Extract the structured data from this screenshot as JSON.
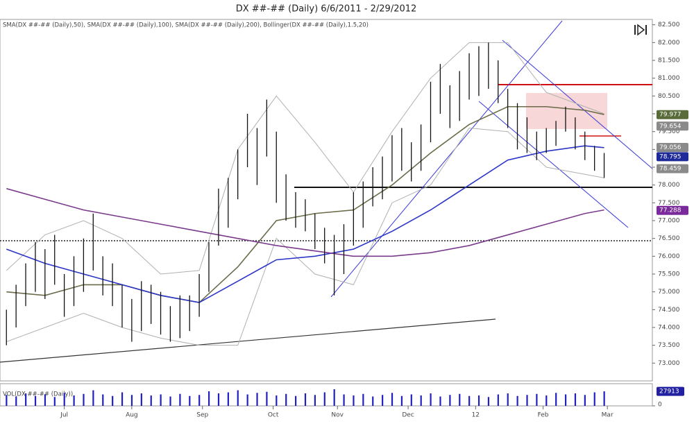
{
  "chart_data": {
    "type": "ohlc",
    "title": "DX ##-## (Daily)  6/6/2011 - 2/29/2012",
    "legend_text": "SMA(DX ##-## (Daily),50), SMA(DX ##-## (Daily),100), SMA(DX ##-## (Daily),200), Bollinger(DX ##-## (Daily),1.5,20)",
    "volume_label": "VOL(DX ##-## (Daily))",
    "xlim": [
      -2,
      201
    ],
    "xticks": [
      {
        "value": 18,
        "label": "Jul"
      },
      {
        "value": 39,
        "label": "Aug"
      },
      {
        "value": 61,
        "label": "Sep"
      },
      {
        "value": 83,
        "label": "Oct"
      },
      {
        "value": 103,
        "label": "Nov"
      },
      {
        "value": 125,
        "label": "Dec"
      },
      {
        "value": 146,
        "label": "12"
      },
      {
        "value": 167,
        "label": "Feb"
      },
      {
        "value": 187,
        "label": "Mar"
      }
    ],
    "ylim": [
      72.5,
      82.65
    ],
    "yticks": [
      {
        "value": 73.0,
        "label": "73.000"
      },
      {
        "value": 73.5,
        "label": "73.500"
      },
      {
        "value": 74.0,
        "label": "74.000"
      },
      {
        "value": 74.5,
        "label": "74.500"
      },
      {
        "value": 75.0,
        "label": "75.000"
      },
      {
        "value": 75.5,
        "label": "75.500"
      },
      {
        "value": 76.0,
        "label": "76.000"
      },
      {
        "value": 76.5,
        "label": "76.500"
      },
      {
        "value": 77.0,
        "label": "77.000"
      },
      {
        "value": 77.5,
        "label": "77.500"
      },
      {
        "value": 78.0,
        "label": "78.000"
      },
      {
        "value": 78.5,
        "label": "78.500"
      },
      {
        "value": 79.0,
        "label": "79.000"
      },
      {
        "value": 79.5,
        "label": "79.500"
      },
      {
        "value": 80.0,
        "label": "80.000"
      },
      {
        "value": 80.5,
        "label": "80.500"
      },
      {
        "value": 81.0,
        "label": "81.000"
      },
      {
        "value": 81.5,
        "label": "81.500"
      },
      {
        "value": 82.0,
        "label": "82.000"
      },
      {
        "value": 82.5,
        "label": "82.500"
      }
    ],
    "bar_color": "#111111",
    "bars": {
      "x": [
        0,
        3,
        6,
        9,
        12,
        15,
        18,
        21,
        24,
        27,
        30,
        33,
        36,
        39,
        42,
        45,
        48,
        51,
        54,
        57,
        60,
        63,
        66,
        69,
        72,
        75,
        78,
        81,
        84,
        87,
        90,
        93,
        96,
        99,
        102,
        105,
        108,
        111,
        114,
        117,
        120,
        123,
        126,
        129,
        132,
        135,
        138,
        141,
        144,
        147,
        150,
        153,
        156,
        159,
        162,
        165,
        168,
        171,
        174,
        177,
        180,
        183,
        186
      ],
      "low": [
        73.5,
        74.0,
        74.6,
        75.0,
        74.8,
        75.2,
        74.3,
        74.6,
        75.0,
        75.6,
        74.9,
        74.6,
        74.0,
        73.6,
        73.9,
        74.1,
        73.8,
        73.6,
        73.7,
        73.9,
        74.3,
        75.0,
        76.3,
        76.8,
        77.6,
        78.5,
        78.0,
        78.8,
        77.5,
        77.0,
        76.8,
        76.7,
        76.2,
        75.8,
        74.9,
        75.5,
        76.3,
        76.8,
        77.4,
        77.6,
        78.1,
        78.4,
        78.1,
        78.4,
        79.2,
        80.0,
        79.6,
        79.8,
        80.4,
        80.5,
        80.7,
        80.3,
        79.6,
        79.0,
        78.9,
        78.7,
        78.9,
        79.1,
        79.5,
        79.0,
        78.7,
        78.4,
        78.2
      ],
      "high": [
        74.5,
        75.2,
        75.8,
        76.4,
        76.2,
        76.6,
        75.5,
        76.0,
        76.5,
        77.2,
        76.0,
        75.8,
        75.2,
        74.8,
        75.3,
        75.2,
        75.0,
        74.6,
        74.9,
        74.9,
        75.5,
        76.4,
        77.9,
        78.2,
        79.0,
        80.0,
        79.6,
        80.4,
        79.5,
        78.3,
        77.8,
        77.6,
        77.2,
        76.8,
        76.6,
        76.9,
        77.8,
        78.1,
        78.5,
        78.8,
        79.4,
        79.6,
        79.2,
        79.7,
        80.9,
        81.4,
        80.8,
        81.2,
        81.7,
        81.9,
        82.0,
        81.5,
        80.7,
        80.3,
        79.9,
        79.5,
        79.6,
        79.8,
        80.2,
        79.9,
        79.5,
        79.1,
        78.9
      ]
    },
    "line_x": [
      0,
      12,
      24,
      36,
      48,
      60,
      72,
      84,
      96,
      108,
      120,
      132,
      144,
      156,
      168,
      180,
      186
    ],
    "series": [
      {
        "name": "Bollinger upper",
        "color": "#b0b0b0",
        "values": [
          75.6,
          76.6,
          77.0,
          76.5,
          75.5,
          75.6,
          79.0,
          80.5,
          79.2,
          77.8,
          79.5,
          81.0,
          82.0,
          82.0,
          80.6,
          80.2,
          80.0
        ]
      },
      {
        "name": "Bollinger lower",
        "color": "#b0b0b0",
        "values": [
          73.6,
          74.0,
          74.4,
          74.0,
          73.7,
          73.5,
          73.5,
          76.5,
          75.5,
          75.2,
          77.5,
          78.0,
          79.6,
          79.5,
          78.5,
          78.3,
          78.2
        ]
      },
      {
        "name": "SMA 50",
        "color": "#6b6b4a",
        "values": [
          75.0,
          74.9,
          75.2,
          75.2,
          74.9,
          74.7,
          75.7,
          77.0,
          77.2,
          77.3,
          78.0,
          78.9,
          79.7,
          80.2,
          80.2,
          80.1,
          79.98
        ]
      },
      {
        "name": "SMA 100",
        "color": "#2a35c8",
        "values": [
          76.2,
          75.8,
          75.5,
          75.2,
          74.9,
          74.7,
          75.3,
          75.9,
          76.0,
          76.2,
          76.7,
          77.3,
          78.0,
          78.7,
          78.95,
          79.1,
          79.05
        ]
      },
      {
        "name": "SMA 200",
        "color": "#7a3a8c",
        "values": [
          77.9,
          77.6,
          77.3,
          77.1,
          76.9,
          76.7,
          76.5,
          76.3,
          76.15,
          76.0,
          76.0,
          76.1,
          76.3,
          76.6,
          76.9,
          77.2,
          77.3
        ]
      }
    ],
    "right_labels": [
      79.977,
      79.654,
      79.056,
      78.795,
      78.459,
      77.288
    ],
    "right_label_colors": [
      "#5a6b3a",
      "#8a8a8a",
      "#8a8a8a",
      "#1f2a9a",
      "#8a8a8a",
      "#7a2a9a"
    ],
    "volume": {
      "color": "#2020c0",
      "ylim": [
        0,
        40000
      ],
      "yticks": [
        0
      ],
      "last_label": 27913,
      "values": [
        21000,
        18000,
        24000,
        19000,
        22000,
        17000,
        25000,
        20000,
        23000,
        30000,
        22000,
        19000,
        26000,
        21000,
        24000,
        20000,
        22000,
        18000,
        23000,
        19000,
        21000,
        28000,
        24000,
        26000,
        30000,
        22000,
        25000,
        27000,
        20000,
        23000,
        19000,
        24000,
        21000,
        26000,
        32000,
        22000,
        20000,
        23000,
        18000,
        21000,
        25000,
        19000,
        22000,
        20000,
        24000,
        18000,
        21000,
        23000,
        19000,
        20000,
        17000,
        22000,
        24000,
        19000,
        21000,
        23000,
        20000,
        25000,
        22000,
        24000,
        21000,
        26000,
        27913
      ]
    }
  }
}
